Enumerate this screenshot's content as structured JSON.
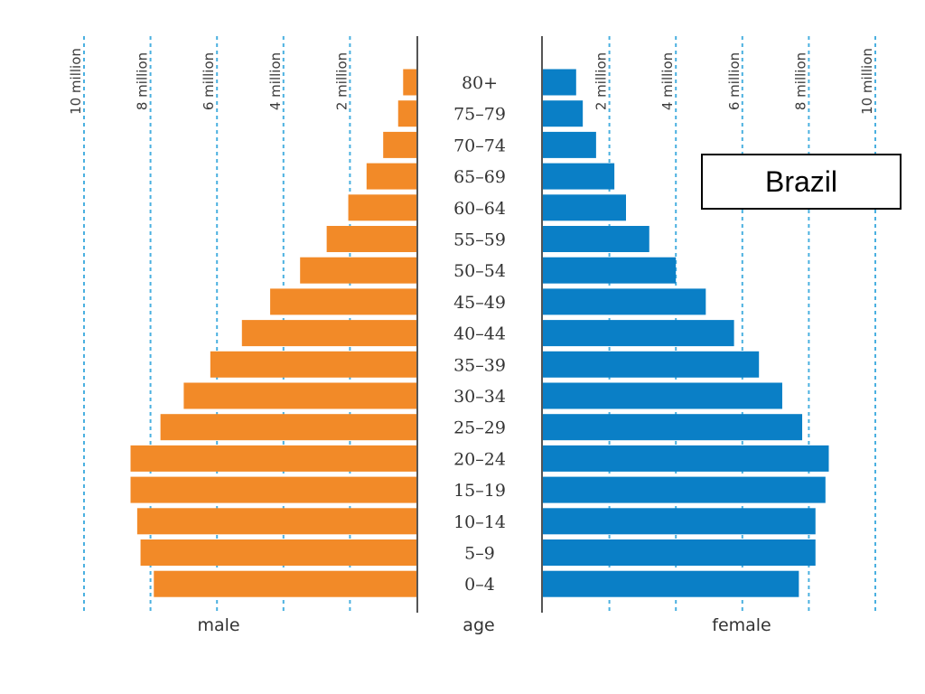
{
  "chart_data": {
    "type": "bar",
    "orientation": "horizontal-population-pyramid",
    "title": "Brazil",
    "center_label": "age",
    "age_groups": [
      "80+",
      "75–79",
      "70–74",
      "65–69",
      "60–64",
      "55–59",
      "50–54",
      "45–49",
      "40–44",
      "35–39",
      "30–34",
      "25–29",
      "20–24",
      "15–19",
      "10–14",
      "5–9",
      "0–4"
    ],
    "series": [
      {
        "name": "male",
        "color": "#f28a28",
        "values": [
          0.4,
          0.55,
          1.0,
          1.5,
          2.05,
          2.7,
          3.5,
          4.4,
          5.25,
          6.2,
          7.0,
          7.7,
          8.6,
          8.6,
          8.4,
          8.3,
          7.9
        ]
      },
      {
        "name": "female",
        "color": "#0a7fc6",
        "values": [
          1.0,
          1.2,
          1.6,
          2.15,
          2.5,
          3.2,
          4.0,
          4.9,
          5.75,
          6.5,
          7.2,
          7.8,
          8.6,
          8.5,
          8.2,
          8.2,
          7.7
        ]
      }
    ],
    "x_unit": "million",
    "x_ticks": [
      2,
      4,
      6,
      8,
      10
    ],
    "x_tick_labels": [
      "2 million",
      "4 million",
      "6 million",
      "8 million",
      "10 million"
    ],
    "xlim": [
      0,
      10
    ],
    "grid": "vertical-dashed",
    "grid_color": "#4ab0e0"
  }
}
